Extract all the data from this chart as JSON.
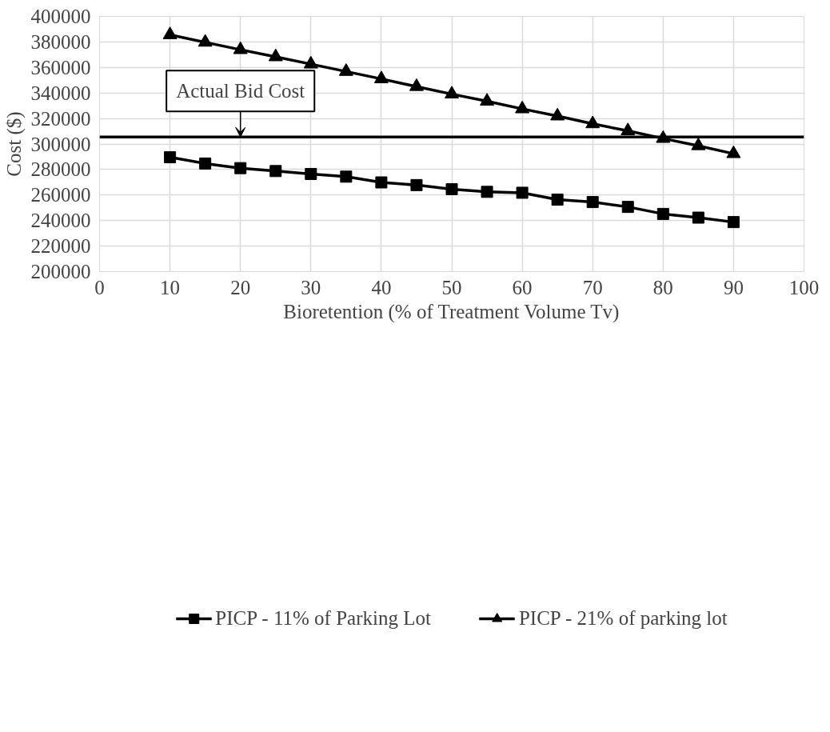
{
  "chart_data": {
    "type": "line",
    "xlabel": "Bioretention (% of Treatment Volume Tv)",
    "ylabel": "Cost ($)",
    "x": [
      10,
      15,
      20,
      25,
      30,
      35,
      40,
      45,
      50,
      55,
      60,
      65,
      70,
      75,
      80,
      85,
      90
    ],
    "series": [
      {
        "name": "PICP - 11% of Parking Lot",
        "color": "#000000",
        "marker": "square",
        "values": [
          289600,
          284700,
          281100,
          278800,
          276500,
          274400,
          269900,
          267800,
          264600,
          262500,
          261800,
          256400,
          254500,
          250700,
          245200,
          242300,
          238800
        ]
      },
      {
        "name": "PICP - 21% of parking lot",
        "color": "#000000",
        "marker": "triangle",
        "values": [
          385600,
          379700,
          373900,
          368300,
          362600,
          356800,
          351000,
          345000,
          339100,
          333500,
          327500,
          321900,
          315800,
          310300,
          304300,
          298600,
          292400
        ]
      }
    ],
    "xlim": [
      0,
      100
    ],
    "xticks": [
      0,
      10,
      20,
      30,
      40,
      50,
      60,
      70,
      80,
      90,
      100
    ],
    "ylim": [
      200000,
      400000
    ],
    "yticks": [
      200000,
      220000,
      240000,
      260000,
      280000,
      300000,
      320000,
      340000,
      360000,
      380000,
      400000
    ],
    "ref_lines": [
      {
        "axis": "y",
        "value": 305500,
        "label": "Actual Bid Cost",
        "color": "#000000"
      }
    ],
    "grid": true,
    "legend": "bottom",
    "line_style": "solid"
  }
}
